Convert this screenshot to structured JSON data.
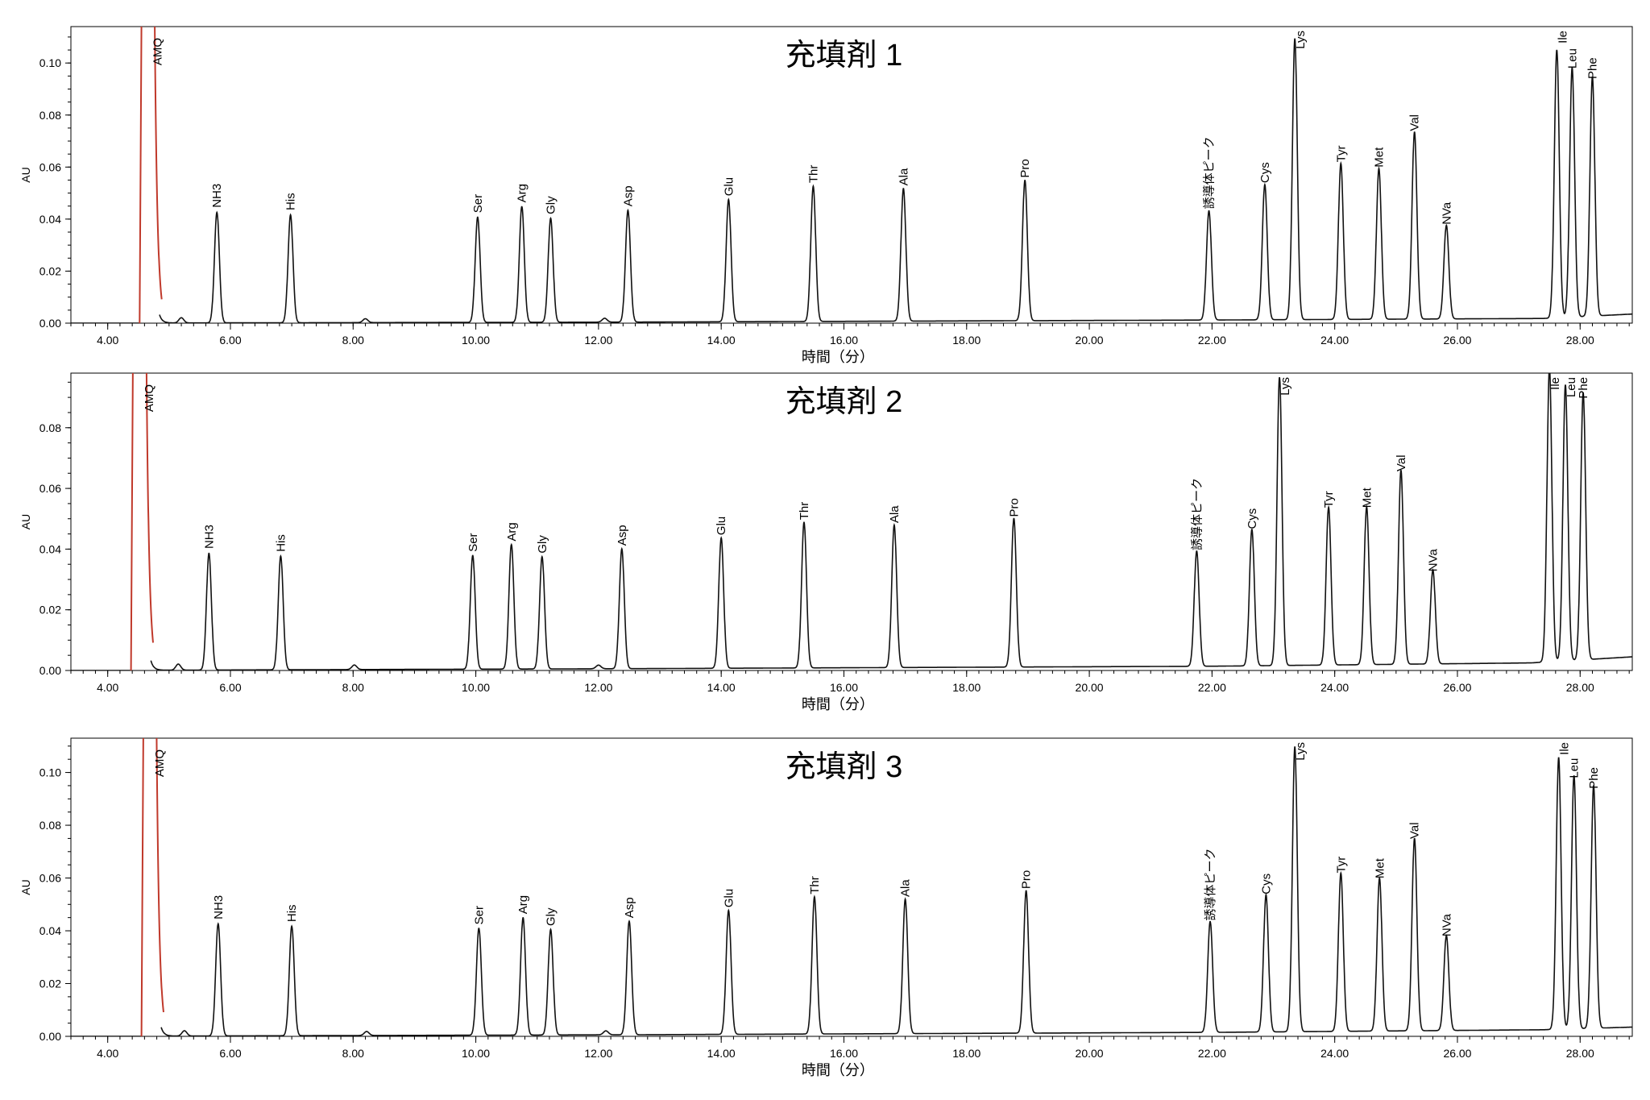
{
  "chart_data": [
    {
      "type": "line",
      "title": "充填剤 1",
      "xlabel": "時間（分）",
      "ylabel": "AU",
      "xlim": [
        3.4,
        28.85
      ],
      "ylim": [
        0,
        0.114
      ],
      "x_ticks": [
        "4.00",
        "6.00",
        "8.00",
        "10.00",
        "12.00",
        "14.00",
        "16.00",
        "18.00",
        "20.00",
        "22.00",
        "24.00",
        "26.00",
        "28.00"
      ],
      "y_ticks": [
        "0.00",
        "0.02",
        "0.04",
        "0.06",
        "0.08",
        "0.10"
      ],
      "baseline": {
        "x": [
          3.4,
          12.5,
          22,
          27.4,
          28.85
        ],
        "y": [
          0.0,
          0.0004,
          0.0012,
          0.0018,
          0.0035
        ]
      },
      "amq": {
        "label": "AMQ",
        "x": 4.72,
        "color": "#c0392b"
      },
      "minor_peaks": [
        {
          "x": 5.2,
          "y": 0.002
        },
        {
          "x": 8.2,
          "y": 0.0015
        },
        {
          "x": 12.1,
          "y": 0.0015
        }
      ],
      "peaks": [
        {
          "label": "NH3",
          "x": 5.78,
          "y": 0.0425
        },
        {
          "label": "His",
          "x": 6.98,
          "y": 0.0415
        },
        {
          "label": "Ser",
          "x": 10.03,
          "y": 0.0405
        },
        {
          "label": "Arg",
          "x": 10.75,
          "y": 0.0445
        },
        {
          "label": "Gly",
          "x": 11.22,
          "y": 0.04
        },
        {
          "label": "Asp",
          "x": 12.48,
          "y": 0.043
        },
        {
          "label": "Glu",
          "x": 14.12,
          "y": 0.047
        },
        {
          "label": "Thr",
          "x": 15.5,
          "y": 0.052
        },
        {
          "label": "Ala",
          "x": 16.97,
          "y": 0.051
        },
        {
          "label": "Pro",
          "x": 18.95,
          "y": 0.054
        },
        {
          "label": "誘導体ピーク",
          "x": 21.95,
          "y": 0.042
        },
        {
          "label": "Cys",
          "x": 22.86,
          "y": 0.052
        },
        {
          "label": "Lys",
          "x": 23.35,
          "y": 0.108
        },
        {
          "label": "Tyr",
          "x": 24.1,
          "y": 0.06
        },
        {
          "label": "Met",
          "x": 24.72,
          "y": 0.058
        },
        {
          "label": "Val",
          "x": 25.3,
          "y": 0.072
        },
        {
          "label": "NVa",
          "x": 25.82,
          "y": 0.036
        },
        {
          "label": "Ile",
          "x": 27.62,
          "y": 0.103
        },
        {
          "label": "Leu",
          "x": 27.87,
          "y": 0.096
        },
        {
          "label": "Phe",
          "x": 28.2,
          "y": 0.092
        }
      ]
    },
    {
      "type": "line",
      "title": "充填剤 2",
      "xlabel": "時間（分）",
      "ylabel": "AU",
      "xlim": [
        3.4,
        28.85
      ],
      "ylim": [
        0,
        0.098
      ],
      "x_ticks": [
        "4.00",
        "6.00",
        "8.00",
        "10.00",
        "12.00",
        "14.00",
        "16.00",
        "18.00",
        "20.00",
        "22.00",
        "24.00",
        "26.00",
        "28.00"
      ],
      "y_ticks": [
        "0.00",
        "0.02",
        "0.04",
        "0.06",
        "0.08"
      ],
      "baseline": {
        "x": [
          3.4,
          12.5,
          22,
          27.2,
          28.85
        ],
        "y": [
          0.0,
          0.0006,
          0.0014,
          0.0025,
          0.0045
        ]
      },
      "amq": {
        "label": "AMQ",
        "x": 4.58,
        "color": "#c0392b"
      },
      "minor_peaks": [
        {
          "x": 5.15,
          "y": 0.002
        },
        {
          "x": 8.02,
          "y": 0.0015
        },
        {
          "x": 12.0,
          "y": 0.0012
        }
      ],
      "peaks": [
        {
          "label": "NH3",
          "x": 5.65,
          "y": 0.0385
        },
        {
          "label": "His",
          "x": 6.82,
          "y": 0.0375
        },
        {
          "label": "Ser",
          "x": 9.95,
          "y": 0.0375
        },
        {
          "label": "Arg",
          "x": 10.58,
          "y": 0.041
        },
        {
          "label": "Gly",
          "x": 11.08,
          "y": 0.037
        },
        {
          "label": "Asp",
          "x": 12.38,
          "y": 0.0395
        },
        {
          "label": "Glu",
          "x": 14.0,
          "y": 0.043
        },
        {
          "label": "Thr",
          "x": 15.35,
          "y": 0.048
        },
        {
          "label": "Ala",
          "x": 16.82,
          "y": 0.047
        },
        {
          "label": "Pro",
          "x": 18.77,
          "y": 0.049
        },
        {
          "label": "誘導体ピーク",
          "x": 21.75,
          "y": 0.038
        },
        {
          "label": "Cys",
          "x": 22.65,
          "y": 0.045
        },
        {
          "label": "Lys",
          "x": 23.1,
          "y": 0.095
        },
        {
          "label": "Tyr",
          "x": 23.9,
          "y": 0.052
        },
        {
          "label": "Met",
          "x": 24.52,
          "y": 0.052
        },
        {
          "label": "Val",
          "x": 25.08,
          "y": 0.064
        },
        {
          "label": "NVa",
          "x": 25.6,
          "y": 0.031
        },
        {
          "label": "Ile",
          "x": 27.5,
          "y": 0.097
        },
        {
          "label": "Leu",
          "x": 27.76,
          "y": 0.091
        },
        {
          "label": "Phe",
          "x": 28.05,
          "y": 0.088
        }
      ]
    },
    {
      "type": "line",
      "title": "充填剤 3",
      "xlabel": "時間（分）",
      "ylabel": "AU",
      "xlim": [
        3.4,
        28.85
      ],
      "ylim": [
        0,
        0.113
      ],
      "x_ticks": [
        "4.00",
        "6.00",
        "8.00",
        "10.00",
        "12.00",
        "14.00",
        "16.00",
        "18.00",
        "20.00",
        "22.00",
        "24.00",
        "26.00",
        "28.00"
      ],
      "y_ticks": [
        "0.00",
        "0.02",
        "0.04",
        "0.06",
        "0.08",
        "0.10"
      ],
      "baseline": {
        "x": [
          3.4,
          12.5,
          22,
          27.4,
          28.85
        ],
        "y": [
          0.0,
          0.0006,
          0.0015,
          0.0025,
          0.0035
        ]
      },
      "amq": {
        "label": "AMQ",
        "x": 4.75,
        "color": "#c0392b"
      },
      "minor_peaks": [
        {
          "x": 5.25,
          "y": 0.002
        },
        {
          "x": 8.22,
          "y": 0.0015
        },
        {
          "x": 12.12,
          "y": 0.0015
        }
      ],
      "peaks": [
        {
          "label": "NH3",
          "x": 5.8,
          "y": 0.0425
        },
        {
          "label": "His",
          "x": 7.0,
          "y": 0.0415
        },
        {
          "label": "Ser",
          "x": 10.05,
          "y": 0.0405
        },
        {
          "label": "Arg",
          "x": 10.77,
          "y": 0.0445
        },
        {
          "label": "Gly",
          "x": 11.22,
          "y": 0.04
        },
        {
          "label": "Asp",
          "x": 12.5,
          "y": 0.043
        },
        {
          "label": "Glu",
          "x": 14.12,
          "y": 0.047
        },
        {
          "label": "Thr",
          "x": 15.52,
          "y": 0.052
        },
        {
          "label": "Ala",
          "x": 17.0,
          "y": 0.051
        },
        {
          "label": "Pro",
          "x": 18.97,
          "y": 0.054
        },
        {
          "label": "誘導体ピーク",
          "x": 21.97,
          "y": 0.042
        },
        {
          "label": "Cys",
          "x": 22.88,
          "y": 0.052
        },
        {
          "label": "Lys",
          "x": 23.35,
          "y": 0.108
        },
        {
          "label": "Tyr",
          "x": 24.1,
          "y": 0.06
        },
        {
          "label": "Met",
          "x": 24.73,
          "y": 0.058
        },
        {
          "label": "Val",
          "x": 25.3,
          "y": 0.073
        },
        {
          "label": "NVa",
          "x": 25.82,
          "y": 0.036
        },
        {
          "label": "Ile",
          "x": 27.65,
          "y": 0.103
        },
        {
          "label": "Leu",
          "x": 27.9,
          "y": 0.096
        },
        {
          "label": "Phe",
          "x": 28.22,
          "y": 0.092
        }
      ]
    }
  ]
}
